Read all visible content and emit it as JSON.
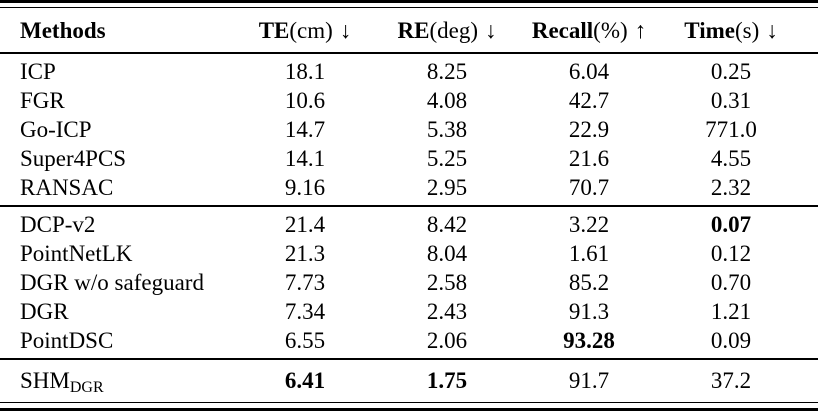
{
  "header": {
    "methods_label": "Methods",
    "cols": [
      {
        "name": "TE",
        "unit": "(cm)",
        "arrow": "↓"
      },
      {
        "name": "RE",
        "unit": "(deg)",
        "arrow": "↓"
      },
      {
        "name": "Recall",
        "unit": "(%)",
        "arrow": "↑"
      },
      {
        "name": "Time",
        "unit": "(s)",
        "arrow": "↓"
      }
    ]
  },
  "rows": [
    {
      "method": "ICP",
      "te": "18.1",
      "re": "8.25",
      "recall": "6.04",
      "time": "0.25"
    },
    {
      "method": "FGR",
      "te": "10.6",
      "re": "4.08",
      "recall": "42.7",
      "time": "0.31"
    },
    {
      "method": "Go-ICP",
      "te": "14.7",
      "re": "5.38",
      "recall": "22.9",
      "time": "771.0"
    },
    {
      "method": "Super4PCS",
      "te": "14.1",
      "re": "5.25",
      "recall": "21.6",
      "time": "4.55"
    },
    {
      "method": "RANSAC",
      "te": "9.16",
      "re": "2.95",
      "recall": "70.7",
      "time": "2.32"
    },
    {
      "method": "DCP-v2",
      "te": "21.4",
      "re": "8.42",
      "recall": "3.22",
      "time": "0.07"
    },
    {
      "method": "PointNetLK",
      "te": "21.3",
      "re": "8.04",
      "recall": "1.61",
      "time": "0.12"
    },
    {
      "method": "DGR w/o safeguard",
      "te": "7.73",
      "re": "2.58",
      "recall": "85.2",
      "time": "0.70"
    },
    {
      "method": "DGR",
      "te": "7.34",
      "re": "2.43",
      "recall": "91.3",
      "time": "1.21"
    },
    {
      "method": "PointDSC",
      "te": "6.55",
      "re": "2.06",
      "recall": "93.28",
      "time": "0.09"
    },
    {
      "method_base": "SHM",
      "method_sub": "DGR",
      "te": "6.41",
      "re": "1.75",
      "recall": "91.7",
      "time": "37.2"
    }
  ],
  "bold_cells": [
    "5.time",
    "9.recall",
    "10.te",
    "10.re"
  ],
  "colors": {
    "text": "#000000",
    "background": "#ffffff",
    "rule": "#000000"
  }
}
